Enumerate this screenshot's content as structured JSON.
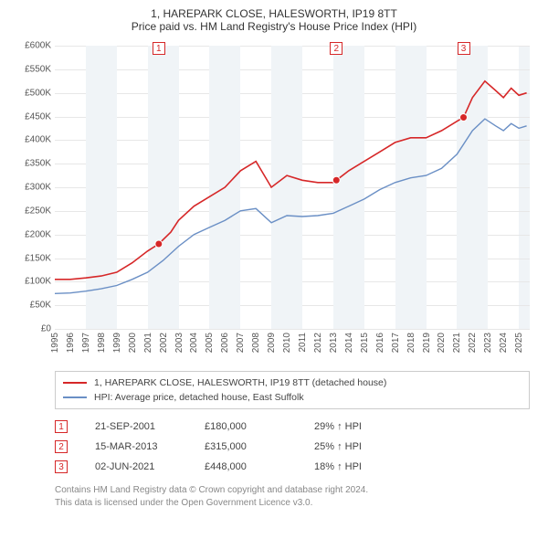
{
  "title_line1": "1, HAREPARK CLOSE, HALESWORTH, IP19 8TT",
  "title_line2": "Price paid vs. HM Land Registry's House Price Index (HPI)",
  "chart": {
    "type": "line",
    "background_color": "#ffffff",
    "grid_color": "#e7e7e7",
    "band_color": "#f0f4f7",
    "x_axis": {
      "min_year": 1995,
      "max_year": 2025.7,
      "tick_years": [
        1995,
        1996,
        1997,
        1998,
        1999,
        2000,
        2001,
        2002,
        2003,
        2004,
        2005,
        2006,
        2007,
        2008,
        2009,
        2010,
        2011,
        2012,
        2013,
        2014,
        2015,
        2016,
        2017,
        2018,
        2019,
        2020,
        2021,
        2022,
        2023,
        2024,
        2025
      ],
      "band_width_years": 2
    },
    "y_axis": {
      "min": 0,
      "max": 600000,
      "tick_step": 50000,
      "tick_labels": [
        "£0",
        "£50K",
        "£100K",
        "£150K",
        "£200K",
        "£250K",
        "£300K",
        "£350K",
        "£400K",
        "£450K",
        "£500K",
        "£550K",
        "£600K"
      ]
    },
    "series": [
      {
        "id": "property",
        "label": "1, HAREPARK CLOSE, HALESWORTH, IP19 8TT (detached house)",
        "color": "#d62728",
        "line_width": 1.6,
        "points": [
          [
            1995.0,
            105000
          ],
          [
            1996.0,
            105000
          ],
          [
            1997.0,
            108000
          ],
          [
            1998.0,
            112000
          ],
          [
            1999.0,
            120000
          ],
          [
            2000.0,
            140000
          ],
          [
            2001.0,
            165000
          ],
          [
            2001.72,
            180000
          ],
          [
            2002.5,
            205000
          ],
          [
            2003.0,
            230000
          ],
          [
            2004.0,
            260000
          ],
          [
            2005.0,
            280000
          ],
          [
            2006.0,
            300000
          ],
          [
            2007.0,
            335000
          ],
          [
            2008.0,
            355000
          ],
          [
            2009.0,
            300000
          ],
          [
            2010.0,
            325000
          ],
          [
            2011.0,
            315000
          ],
          [
            2012.0,
            310000
          ],
          [
            2013.0,
            310000
          ],
          [
            2013.2,
            315000
          ],
          [
            2014.0,
            335000
          ],
          [
            2015.0,
            355000
          ],
          [
            2016.0,
            375000
          ],
          [
            2017.0,
            395000
          ],
          [
            2018.0,
            405000
          ],
          [
            2019.0,
            405000
          ],
          [
            2020.0,
            420000
          ],
          [
            2021.0,
            440000
          ],
          [
            2021.42,
            448000
          ],
          [
            2022.0,
            490000
          ],
          [
            2022.8,
            525000
          ],
          [
            2023.5,
            505000
          ],
          [
            2024.0,
            490000
          ],
          [
            2024.5,
            510000
          ],
          [
            2025.0,
            495000
          ],
          [
            2025.5,
            500000
          ]
        ]
      },
      {
        "id": "hpi",
        "label": "HPI: Average price, detached house, East Suffolk",
        "color": "#6a8fc5",
        "line_width": 1.4,
        "points": [
          [
            1995.0,
            75000
          ],
          [
            1996.0,
            76000
          ],
          [
            1997.0,
            80000
          ],
          [
            1998.0,
            85000
          ],
          [
            1999.0,
            92000
          ],
          [
            2000.0,
            105000
          ],
          [
            2001.0,
            120000
          ],
          [
            2002.0,
            145000
          ],
          [
            2003.0,
            175000
          ],
          [
            2004.0,
            200000
          ],
          [
            2005.0,
            215000
          ],
          [
            2006.0,
            230000
          ],
          [
            2007.0,
            250000
          ],
          [
            2008.0,
            255000
          ],
          [
            2009.0,
            225000
          ],
          [
            2010.0,
            240000
          ],
          [
            2011.0,
            238000
          ],
          [
            2012.0,
            240000
          ],
          [
            2013.0,
            245000
          ],
          [
            2014.0,
            260000
          ],
          [
            2015.0,
            275000
          ],
          [
            2016.0,
            295000
          ],
          [
            2017.0,
            310000
          ],
          [
            2018.0,
            320000
          ],
          [
            2019.0,
            325000
          ],
          [
            2020.0,
            340000
          ],
          [
            2021.0,
            370000
          ],
          [
            2022.0,
            420000
          ],
          [
            2022.8,
            445000
          ],
          [
            2023.5,
            430000
          ],
          [
            2024.0,
            420000
          ],
          [
            2024.5,
            435000
          ],
          [
            2025.0,
            425000
          ],
          [
            2025.5,
            430000
          ]
        ]
      }
    ],
    "sale_markers": [
      {
        "num": "1",
        "year": 2001.72,
        "price": 180000
      },
      {
        "num": "2",
        "year": 2013.2,
        "price": 315000
      },
      {
        "num": "3",
        "year": 2021.42,
        "price": 448000
      }
    ]
  },
  "legend": [
    {
      "color": "#d62728",
      "label": "1, HAREPARK CLOSE, HALESWORTH, IP19 8TT (detached house)"
    },
    {
      "color": "#6a8fc5",
      "label": "HPI: Average price, detached house, East Suffolk"
    }
  ],
  "sales_table": [
    {
      "num": "1",
      "date": "21-SEP-2001",
      "price": "£180,000",
      "diff": "29% ↑ HPI"
    },
    {
      "num": "2",
      "date": "15-MAR-2013",
      "price": "£315,000",
      "diff": "25% ↑ HPI"
    },
    {
      "num": "3",
      "date": "02-JUN-2021",
      "price": "£448,000",
      "diff": "18% ↑ HPI"
    }
  ],
  "footnote_line1": "Contains HM Land Registry data © Crown copyright and database right 2024.",
  "footnote_line2": "This data is licensed under the Open Government Licence v3.0."
}
